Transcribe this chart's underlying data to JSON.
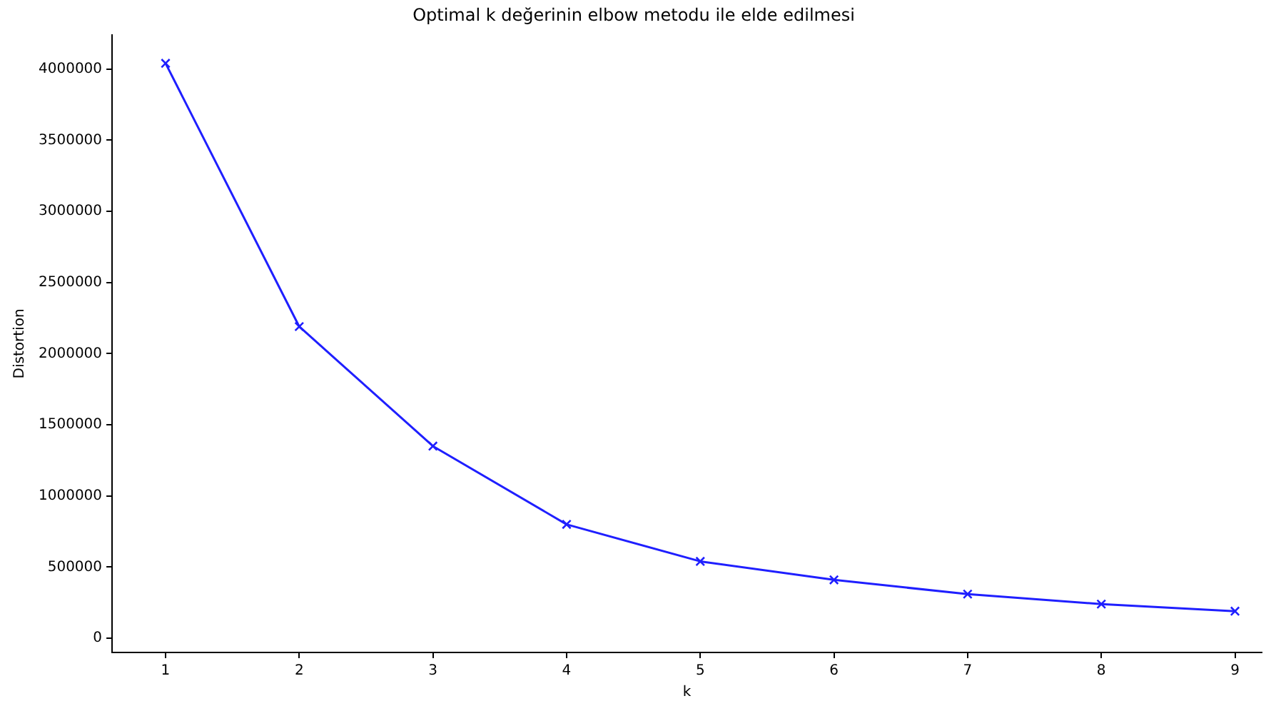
{
  "chart_data": {
    "type": "line",
    "title": "Optimal k değerinin elbow metodu ile elde edilmesi",
    "xlabel": "k",
    "ylabel": "Distortion",
    "x": [
      1,
      2,
      3,
      4,
      5,
      6,
      7,
      8,
      9
    ],
    "series": [
      {
        "color": "#1f1fff",
        "values": [
          4040000,
          2190000,
          1350000,
          800000,
          540000,
          410000,
          310000,
          240000,
          190000
        ]
      }
    ],
    "xlim": [
      0.6,
      9.2
    ],
    "xticks": [
      1,
      2,
      3,
      4,
      5,
      6,
      7,
      8,
      9
    ],
    "ylim": [
      -100000,
      4240000
    ],
    "yticks": [
      0,
      500000,
      1000000,
      1500000,
      2000000,
      2500000,
      3000000,
      3500000,
      4000000
    ],
    "grid": false,
    "legend": false,
    "marker": "cross",
    "line_style": "solid"
  }
}
